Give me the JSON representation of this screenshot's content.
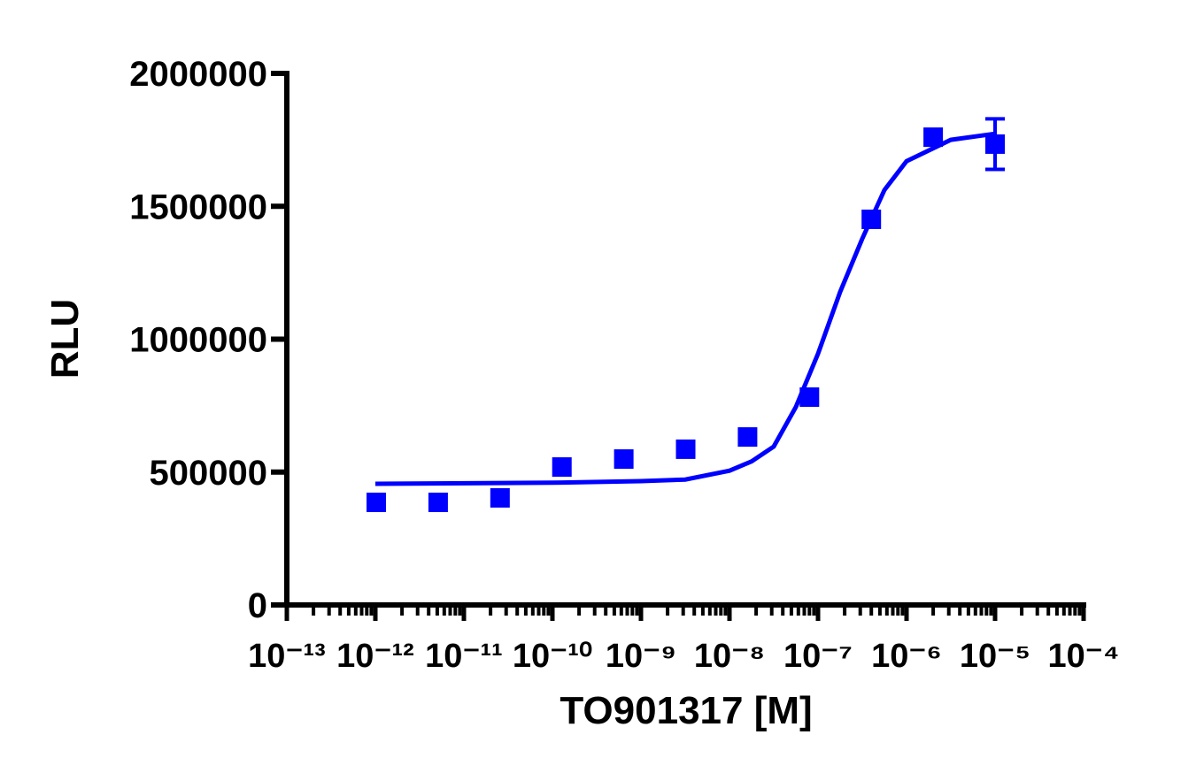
{
  "chart_data": {
    "type": "scatter",
    "xlabel": "TO901317 [M]",
    "ylabel": "RLU",
    "xscale": "log",
    "xlim": [
      1e-13,
      0.0001
    ],
    "xticks": [
      {
        "value": 1e-13,
        "label": "10⁻¹³"
      },
      {
        "value": 1e-12,
        "label": "10⁻¹²"
      },
      {
        "value": 1e-11,
        "label": "10⁻¹¹"
      },
      {
        "value": 1e-10,
        "label": "10⁻¹⁰"
      },
      {
        "value": 1e-09,
        "label": "10⁻⁹"
      },
      {
        "value": 1e-08,
        "label": "10⁻⁸"
      },
      {
        "value": 1e-07,
        "label": "10⁻⁷"
      },
      {
        "value": 1e-06,
        "label": "10⁻⁶"
      },
      {
        "value": 1e-05,
        "label": "10⁻⁵"
      },
      {
        "value": 0.0001,
        "label": "10⁻⁴"
      }
    ],
    "minor_ticks": true,
    "ylim": [
      0,
      2000000
    ],
    "yticks": [
      0,
      500000,
      1000000,
      1500000,
      2000000
    ],
    "series": [
      {
        "type": "scatter",
        "color": "#0000ff",
        "x": [
          1.024e-12,
          5.12e-12,
          2.56e-11,
          1.28e-10,
          6.4e-10,
          3.2e-09,
          1.6e-08,
          8e-08,
          4e-07,
          2e-06,
          1e-05
        ],
        "values": [
          386000,
          386000,
          403000,
          519000,
          549000,
          586000,
          632000,
          782000,
          1451000,
          1760000,
          1734000
        ],
        "errors": [
          null,
          null,
          null,
          null,
          null,
          null,
          null,
          null,
          null,
          null,
          95000
        ]
      },
      {
        "type": "line",
        "color": "#0000ff",
        "x": [
          1e-12,
          1e-10,
          1e-09,
          3.16e-09,
          1e-08,
          1.78e-08,
          3.16e-08,
          5.62e-08,
          1e-07,
          1.78e-07,
          3.16e-07,
          5.62e-07,
          1e-06,
          3.16e-06,
          1e-05
        ],
        "values": [
          456000,
          460000,
          466000,
          472000,
          505000,
          540000,
          596000,
          745000,
          945000,
          1178000,
          1378000,
          1561000,
          1670000,
          1750000,
          1773000
        ]
      }
    ]
  }
}
